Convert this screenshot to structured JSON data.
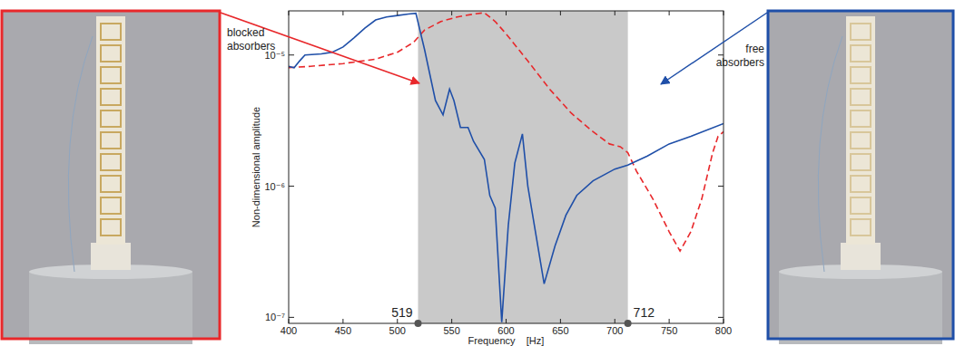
{
  "chart_data": {
    "type": "line",
    "xlabel": "Frequency    [Hz]",
    "ylabel": "Non-dimensional amplitude",
    "log": "y",
    "xlim": [
      400,
      800
    ],
    "ylim": [
      9e-08,
      2.17e-05
    ],
    "xticks": [
      400,
      450,
      500,
      550,
      600,
      650,
      700,
      750,
      800
    ],
    "yticks": [
      {
        "value": 1e-07,
        "label": "10⁻⁷"
      },
      {
        "value": 1e-06,
        "label": "10⁻⁶"
      },
      {
        "value": 1e-05,
        "label": "10⁻⁵"
      }
    ],
    "band": [
      519,
      712
    ],
    "series": [
      {
        "name": "blocked absorbers",
        "color": "#e8282b",
        "line_style": "dashed",
        "x": [
          400,
          420,
          450,
          480,
          500,
          515,
          525,
          540,
          555,
          570,
          580,
          590,
          600,
          620,
          640,
          660,
          680,
          695,
          705,
          712,
          720,
          735,
          750,
          760,
          770,
          780,
          790,
          795,
          800
        ],
        "values": [
          8e-06,
          8.2e-06,
          8.6e-06,
          9.3e-06,
          1.05e-05,
          1.25e-05,
          1.55e-05,
          1.8e-05,
          1.95e-05,
          2.05e-05,
          2.1e-05,
          1.8e-05,
          1.45e-05,
          9e-06,
          5.5e-06,
          3.6e-06,
          2.6e-06,
          2.1e-06,
          2e-06,
          1.8e-06,
          1.3e-06,
          8e-07,
          4.5e-07,
          3.2e-07,
          4.5e-07,
          8e-07,
          1.8e-06,
          2.4e-06,
          2.6e-06
        ]
      },
      {
        "name": "free absorbers",
        "color": "#1f4fa8",
        "line_style": "solid",
        "x": [
          400,
          405,
          410,
          415,
          430,
          440,
          450,
          460,
          470,
          480,
          490,
          500,
          510,
          517,
          525,
          535,
          542,
          548,
          552,
          558,
          565,
          570,
          580,
          585,
          590,
          596,
          602,
          608,
          615,
          620,
          628,
          635,
          645,
          655,
          665,
          680,
          700,
          712,
          730,
          750,
          770,
          800
        ],
        "values": [
          8.2e-06,
          8e-06,
          9e-06,
          1e-05,
          1.02e-05,
          1.05e-05,
          1.15e-05,
          1.35e-05,
          1.6e-05,
          1.85e-05,
          1.95e-05,
          2e-05,
          2.05e-05,
          2.08e-05,
          1.1e-05,
          4.5e-06,
          3.5e-06,
          5.5e-06,
          4.5e-06,
          2.8e-06,
          2.8e-06,
          2.2e-06,
          1.6e-06,
          8.5e-07,
          6.8e-07,
          9.2e-08,
          5e-07,
          1.5e-06,
          2.5e-06,
          1e-06,
          4e-07,
          1.8e-07,
          3.5e-07,
          6e-07,
          8.5e-07,
          1.1e-06,
          1.35e-06,
          1.45e-06,
          1.7e-06,
          2.1e-06,
          2.4e-06,
          3e-06
        ]
      }
    ]
  }
}
